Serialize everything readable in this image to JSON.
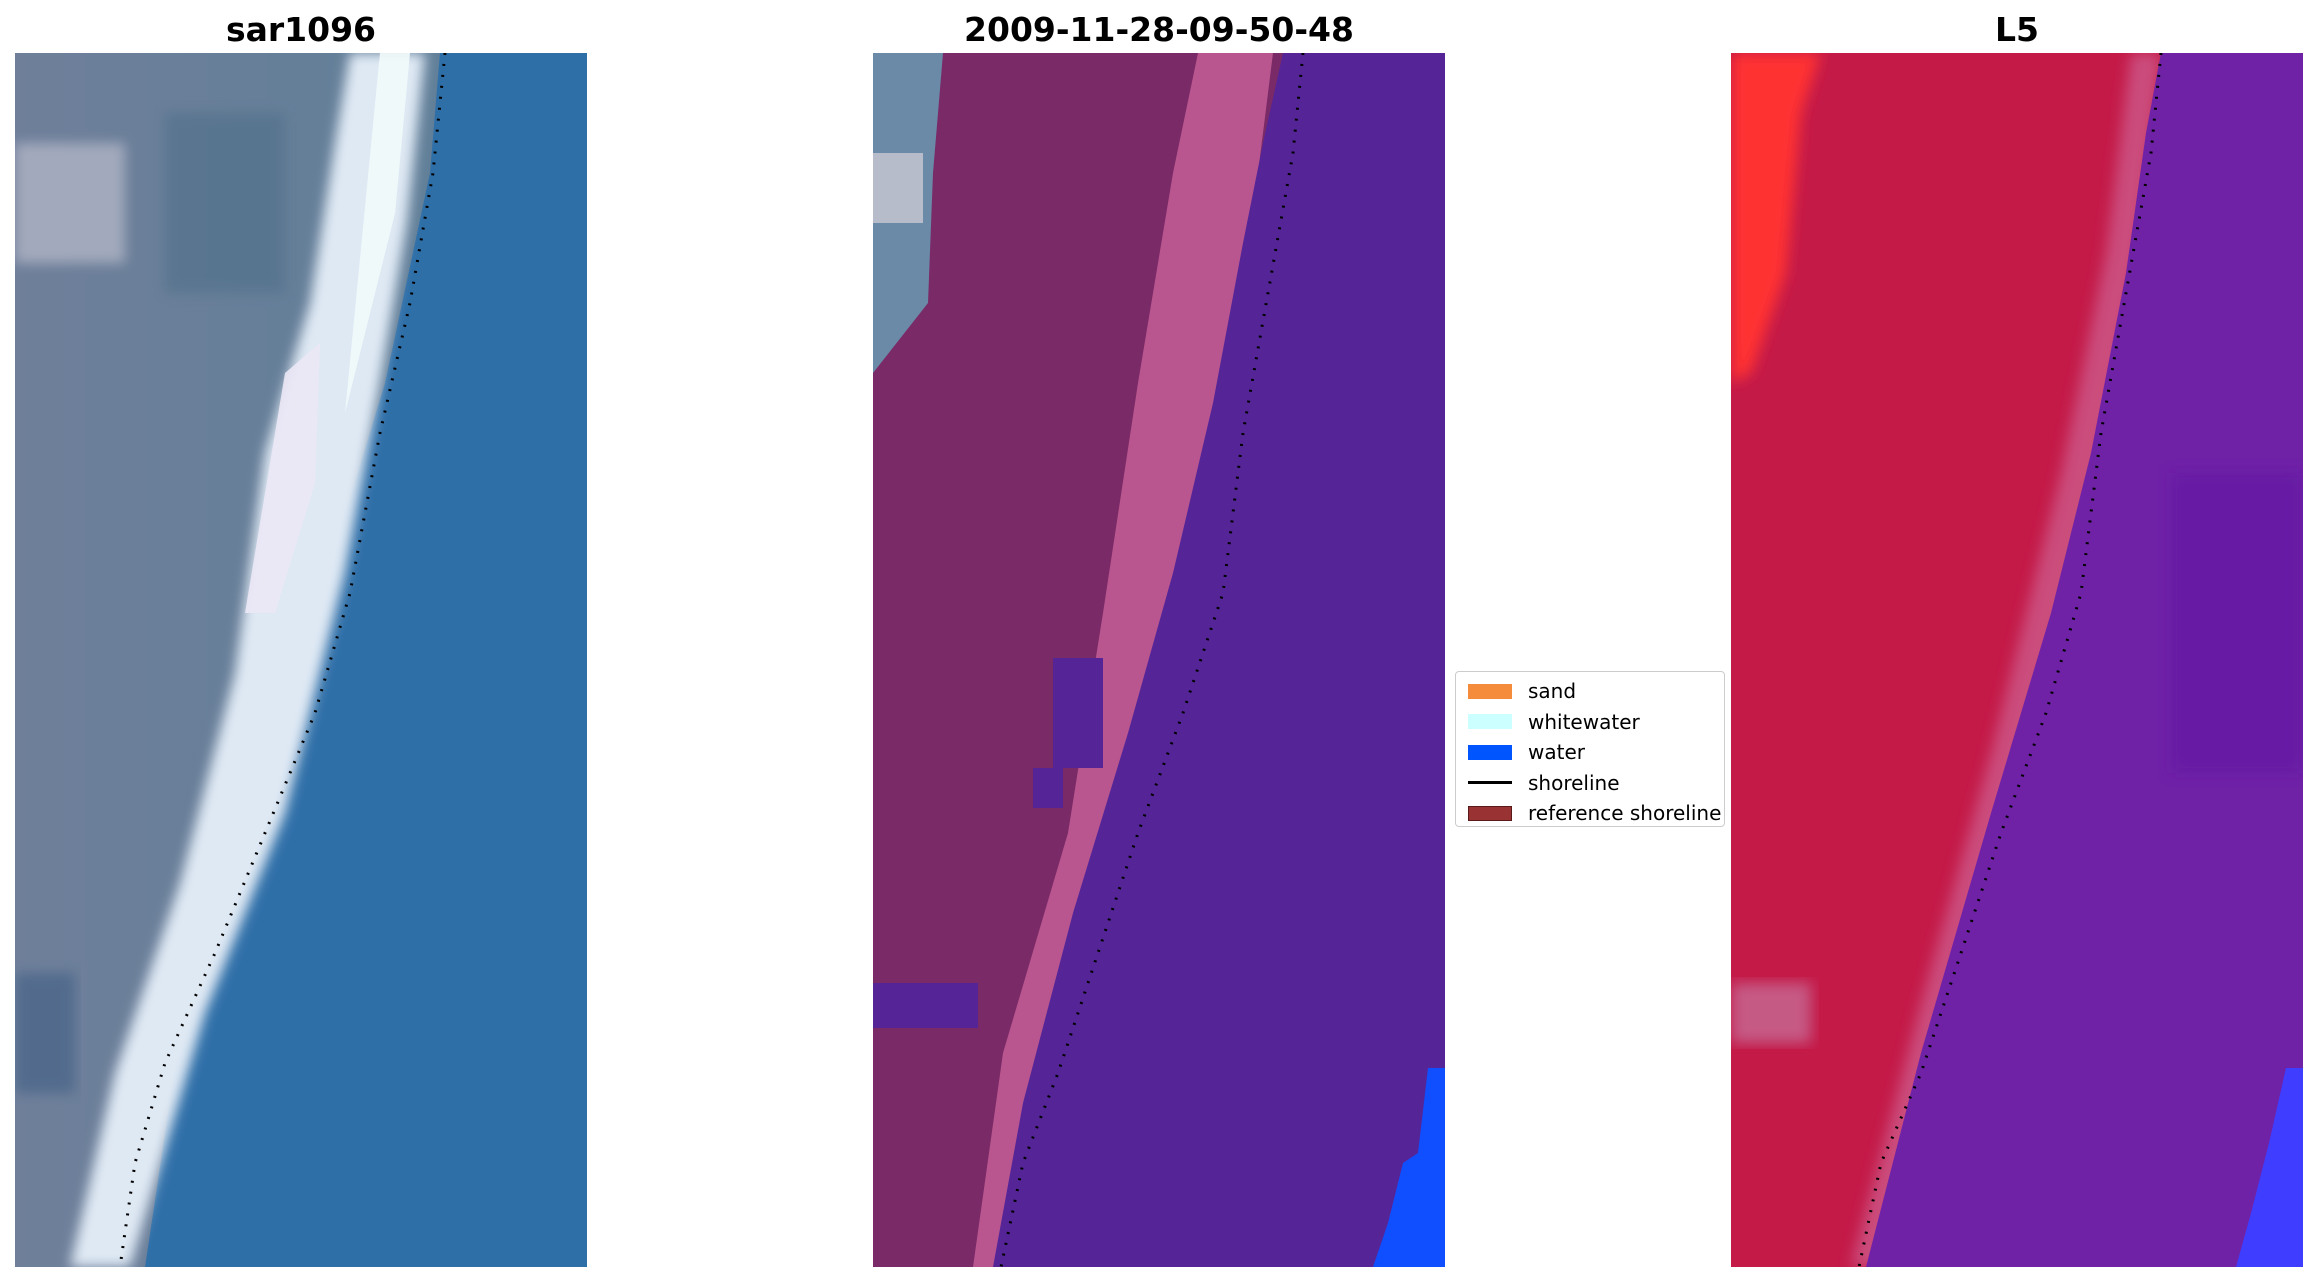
{
  "panels": [
    {
      "title": "sar1096",
      "image": "rgb-composite"
    },
    {
      "title": "2009-11-28-09-50-48",
      "image": "classified-overlay"
    },
    {
      "title": "L5",
      "image": "false-color-composite"
    }
  ],
  "legend": {
    "items": [
      {
        "label": "sand",
        "color": "#f58c3c",
        "kind": "patch"
      },
      {
        "label": "whitewater",
        "color": "#ccffff",
        "kind": "patch"
      },
      {
        "label": "water",
        "color": "#0055ff",
        "kind": "patch"
      },
      {
        "label": "shoreline",
        "color": "#000000",
        "kind": "line"
      },
      {
        "label": "reference shoreline",
        "color": "#993333",
        "kind": "patch"
      }
    ]
  }
}
